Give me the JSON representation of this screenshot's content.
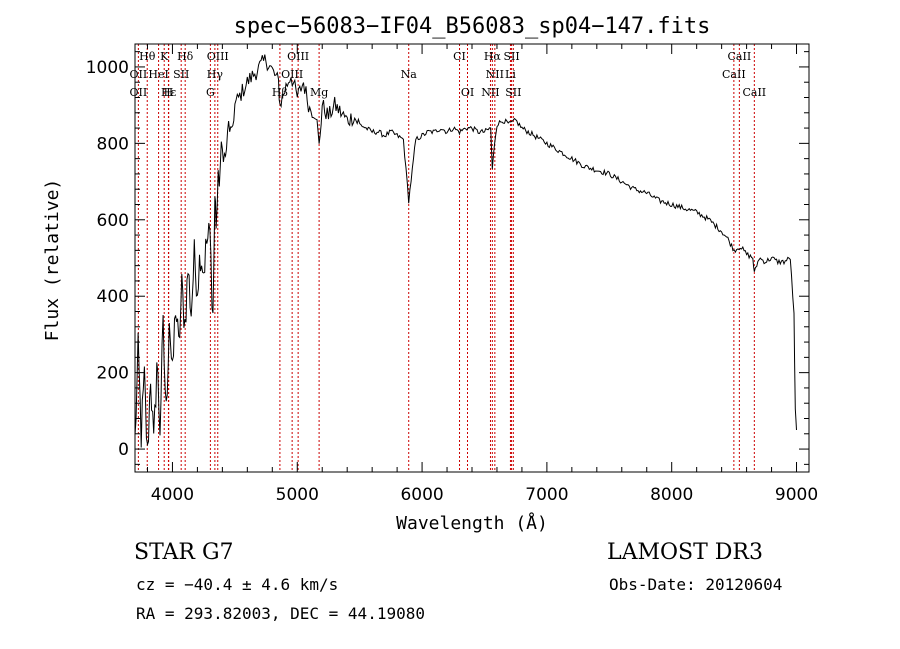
{
  "chart_data": {
    "type": "line",
    "title": "spec−56083−IF04_B56083_sp04−147.fits",
    "xlabel": "Wavelength (Å)",
    "ylabel": "Flux (relative)",
    "xlim": [
      3700,
      9100
    ],
    "ylim": [
      -60,
      1060
    ],
    "xticks": [
      4000,
      5000,
      6000,
      7000,
      8000,
      9000
    ],
    "yticks": [
      0,
      200,
      400,
      600,
      800,
      1000
    ],
    "grid": false,
    "series": [
      {
        "color": "#000000",
        "x": [
          3700,
          3725,
          3750,
          3775,
          3800,
          3825,
          3850,
          3875,
          3900,
          3925,
          3950,
          3975,
          4000,
          4025,
          4050,
          4075,
          4100,
          4125,
          4150,
          4175,
          4200,
          4225,
          4250,
          4275,
          4300,
          4325,
          4340,
          4350,
          4375,
          4400,
          4425,
          4450,
          4475,
          4500,
          4550,
          4600,
          4650,
          4700,
          4750,
          4800,
          4850,
          4861,
          4900,
          4950,
          5000,
          5050,
          5100,
          5150,
          5175,
          5200,
          5250,
          5300,
          5350,
          5400,
          5450,
          5500,
          5550,
          5600,
          5650,
          5700,
          5750,
          5800,
          5850,
          5893,
          5950,
          6000,
          6050,
          6100,
          6150,
          6200,
          6250,
          6300,
          6350,
          6400,
          6450,
          6500,
          6550,
          6563,
          6580,
          6600,
          6650,
          6700,
          6750,
          6800,
          6850,
          6900,
          6950,
          7000,
          7050,
          7100,
          7150,
          7200,
          7300,
          7400,
          7500,
          7600,
          7700,
          7800,
          7900,
          8000,
          8100,
          8200,
          8300,
          8400,
          8450,
          8500,
          8550,
          8600,
          8650,
          8662,
          8700,
          8750,
          8800,
          8850,
          8900,
          8950,
          8980,
          8990,
          9000
        ],
        "y": [
          20,
          250,
          40,
          180,
          -20,
          200,
          0,
          230,
          60,
          310,
          90,
          350,
          180,
          380,
          260,
          420,
          330,
          470,
          360,
          500,
          430,
          520,
          470,
          540,
          560,
          350,
          660,
          600,
          720,
          780,
          760,
          850,
          820,
          900,
          930,
          960,
          980,
          1000,
          1020,
          990,
          960,
          900,
          940,
          980,
          920,
          960,
          890,
          880,
          790,
          900,
          870,
          900,
          880,
          860,
          870,
          850,
          840,
          830,
          830,
          820,
          830,
          820,
          810,
          650,
          810,
          820,
          830,
          830,
          840,
          830,
          840,
          830,
          840,
          840,
          830,
          830,
          840,
          730,
          800,
          850,
          860,
          850,
          860,
          840,
          830,
          820,
          810,
          800,
          790,
          780,
          770,
          760,
          740,
          730,
          720,
          700,
          680,
          670,
          650,
          640,
          630,
          620,
          600,
          570,
          550,
          520,
          530,
          510,
          500,
          460,
          500,
          490,
          500,
          490,
          490,
          500,
          350,
          100,
          50
        ]
      }
    ],
    "annotations": [
      {
        "label": "Hθ",
        "x": 3798,
        "row": 0
      },
      {
        "label": "K",
        "x": 3934,
        "row": 0
      },
      {
        "label": "Hδ",
        "x": 4102,
        "row": 0
      },
      {
        "label": "OIII",
        "x": 4363,
        "row": 0
      },
      {
        "label": "OIII",
        "x": 5007,
        "row": 0
      },
      {
        "label": "CI",
        "x": 6300,
        "row": 0
      },
      {
        "label": "Hα",
        "x": 6563,
        "row": 0
      },
      {
        "label": "SII",
        "x": 6717,
        "row": 0
      },
      {
        "label": "CaII",
        "x": 8542,
        "row": 0
      },
      {
        "label": "OII",
        "x": 3727,
        "row": 1
      },
      {
        "label": "HeI",
        "x": 3889,
        "row": 1
      },
      {
        "label": "SII",
        "x": 4070,
        "row": 1
      },
      {
        "label": "Hγ",
        "x": 4340,
        "row": 1
      },
      {
        "label": "OIII",
        "x": 4959,
        "row": 1
      },
      {
        "label": "Na",
        "x": 5893,
        "row": 1
      },
      {
        "label": "NII",
        "x": 6583,
        "row": 1
      },
      {
        "label": "Li",
        "x": 6708,
        "row": 1
      },
      {
        "label": "CaII",
        "x": 8498,
        "row": 1
      },
      {
        "label": "OII",
        "x": 3727,
        "row": 2
      },
      {
        "label": "Hε",
        "x": 3970,
        "row": 2
      },
      {
        "label": "H",
        "x": 3968,
        "row": 2
      },
      {
        "label": "G",
        "x": 4304,
        "row": 2
      },
      {
        "label": "Hβ",
        "x": 4861,
        "row": 2
      },
      {
        "label": "Mg",
        "x": 5175,
        "row": 2
      },
      {
        "label": "OI",
        "x": 6364,
        "row": 2
      },
      {
        "label": "NII",
        "x": 6548,
        "row": 2
      },
      {
        "label": "SII",
        "x": 6731,
        "row": 2
      },
      {
        "label": "CaII",
        "x": 8662,
        "row": 2
      }
    ],
    "line_markers": [
      3727,
      3798,
      3889,
      3934,
      3968,
      3970,
      4070,
      4102,
      4304,
      4340,
      4363,
      4861,
      4959,
      5007,
      5175,
      5893,
      6300,
      6364,
      6548,
      6563,
      6583,
      6708,
      6717,
      6731,
      8498,
      8542,
      8662
    ],
    "marker_color": "#cc0000"
  },
  "info": {
    "class": "STAR    G7",
    "survey": "LAMOST DR3",
    "cz": "cz = −40.4 ± 4.6 km/s",
    "obs_date": "Obs-Date: 20120604",
    "radec": "RA = 293.82003, DEC =  44.19080"
  }
}
